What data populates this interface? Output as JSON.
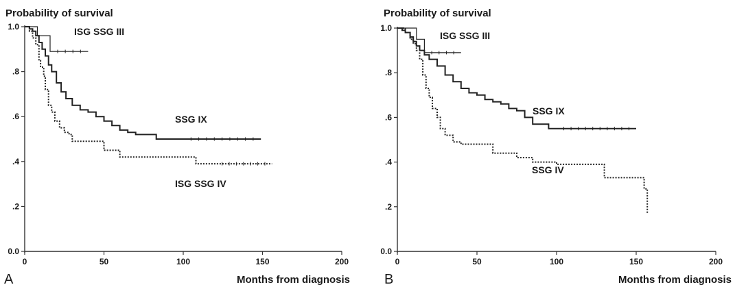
{
  "chart_data": [
    {
      "type": "line",
      "panel_label": "A",
      "ylabel": "Probability of survival",
      "xlabel": "Months from diagnosis",
      "xlim": [
        0,
        200
      ],
      "ylim": [
        0,
        1
      ],
      "xticks": [
        "0",
        "50",
        "100",
        "150",
        "200"
      ],
      "yticks": [
        "0.0",
        ".2",
        ".4",
        ".6",
        ".8",
        "1.0"
      ],
      "grid": false,
      "legend": "none (series labelled directly on plot)",
      "series": [
        {
          "name": "ISG SSG III",
          "style": "solid thin",
          "x": [
            0,
            5,
            8,
            12,
            16,
            16,
            40
          ],
          "y": [
            1.0,
            1.0,
            0.96,
            0.96,
            0.96,
            0.89,
            0.89
          ]
        },
        {
          "name": "SSG IX",
          "style": "solid thick",
          "x": [
            0,
            3,
            5,
            7,
            9,
            11,
            13,
            15,
            17,
            20,
            23,
            26,
            30,
            35,
            40,
            45,
            50,
            55,
            60,
            65,
            70,
            75,
            80,
            83,
            100,
            149
          ],
          "y": [
            1.0,
            0.99,
            0.98,
            0.96,
            0.93,
            0.9,
            0.87,
            0.83,
            0.8,
            0.75,
            0.71,
            0.68,
            0.65,
            0.63,
            0.62,
            0.6,
            0.58,
            0.56,
            0.54,
            0.53,
            0.52,
            0.52,
            0.52,
            0.5,
            0.5,
            0.5
          ]
        },
        {
          "name": "ISG SSG IV",
          "style": "dotted",
          "x": [
            0,
            3,
            5,
            7,
            9,
            10,
            12,
            13,
            15,
            17,
            19,
            22,
            25,
            28,
            30,
            35,
            45,
            50,
            52,
            55,
            60,
            75,
            100,
            108,
            120,
            156
          ],
          "y": [
            1.0,
            0.98,
            0.95,
            0.92,
            0.85,
            0.82,
            0.78,
            0.72,
            0.65,
            0.62,
            0.58,
            0.55,
            0.53,
            0.52,
            0.49,
            0.49,
            0.49,
            0.45,
            0.45,
            0.45,
            0.42,
            0.42,
            0.42,
            0.39,
            0.39,
            0.39
          ]
        }
      ]
    },
    {
      "type": "line",
      "panel_label": "B",
      "ylabel": "Probability of survival",
      "xlabel": "Months from diagnosis",
      "xlim": [
        0,
        200
      ],
      "ylim": [
        0,
        1
      ],
      "xticks": [
        "0",
        "50",
        "100",
        "150",
        "200"
      ],
      "yticks": [
        "0.0",
        ".2",
        ".4",
        ".6",
        ".8",
        "1.0"
      ],
      "grid": false,
      "legend": "none (series labelled directly on plot)",
      "series": [
        {
          "name": "ISG SSG III",
          "style": "solid thin",
          "x": [
            0,
            8,
            12,
            12,
            17,
            17,
            40
          ],
          "y": [
            1.0,
            1.0,
            1.0,
            0.95,
            0.95,
            0.89,
            0.89
          ]
        },
        {
          "name": "SSG IX",
          "style": "solid thick",
          "x": [
            0,
            3,
            5,
            8,
            10,
            12,
            14,
            17,
            20,
            25,
            30,
            35,
            40,
            45,
            50,
            55,
            60,
            65,
            70,
            75,
            80,
            85,
            90,
            95,
            100,
            150
          ],
          "y": [
            1.0,
            0.99,
            0.98,
            0.96,
            0.94,
            0.92,
            0.9,
            0.88,
            0.86,
            0.83,
            0.79,
            0.76,
            0.73,
            0.71,
            0.7,
            0.68,
            0.67,
            0.66,
            0.64,
            0.63,
            0.6,
            0.57,
            0.57,
            0.55,
            0.55,
            0.55
          ]
        },
        {
          "name": "SSG  IV",
          "style": "dotted",
          "x": [
            0,
            5,
            8,
            10,
            12,
            14,
            16,
            18,
            20,
            22,
            25,
            27,
            30,
            33,
            35,
            40,
            50,
            55,
            60,
            65,
            75,
            85,
            100,
            115,
            120,
            125,
            130,
            140,
            150,
            155,
            157
          ],
          "y": [
            1.0,
            0.98,
            0.95,
            0.93,
            0.9,
            0.86,
            0.79,
            0.73,
            0.69,
            0.64,
            0.6,
            0.55,
            0.52,
            0.52,
            0.49,
            0.48,
            0.48,
            0.48,
            0.44,
            0.44,
            0.42,
            0.4,
            0.39,
            0.39,
            0.39,
            0.39,
            0.33,
            0.33,
            0.33,
            0.28,
            0.17
          ]
        }
      ]
    }
  ]
}
